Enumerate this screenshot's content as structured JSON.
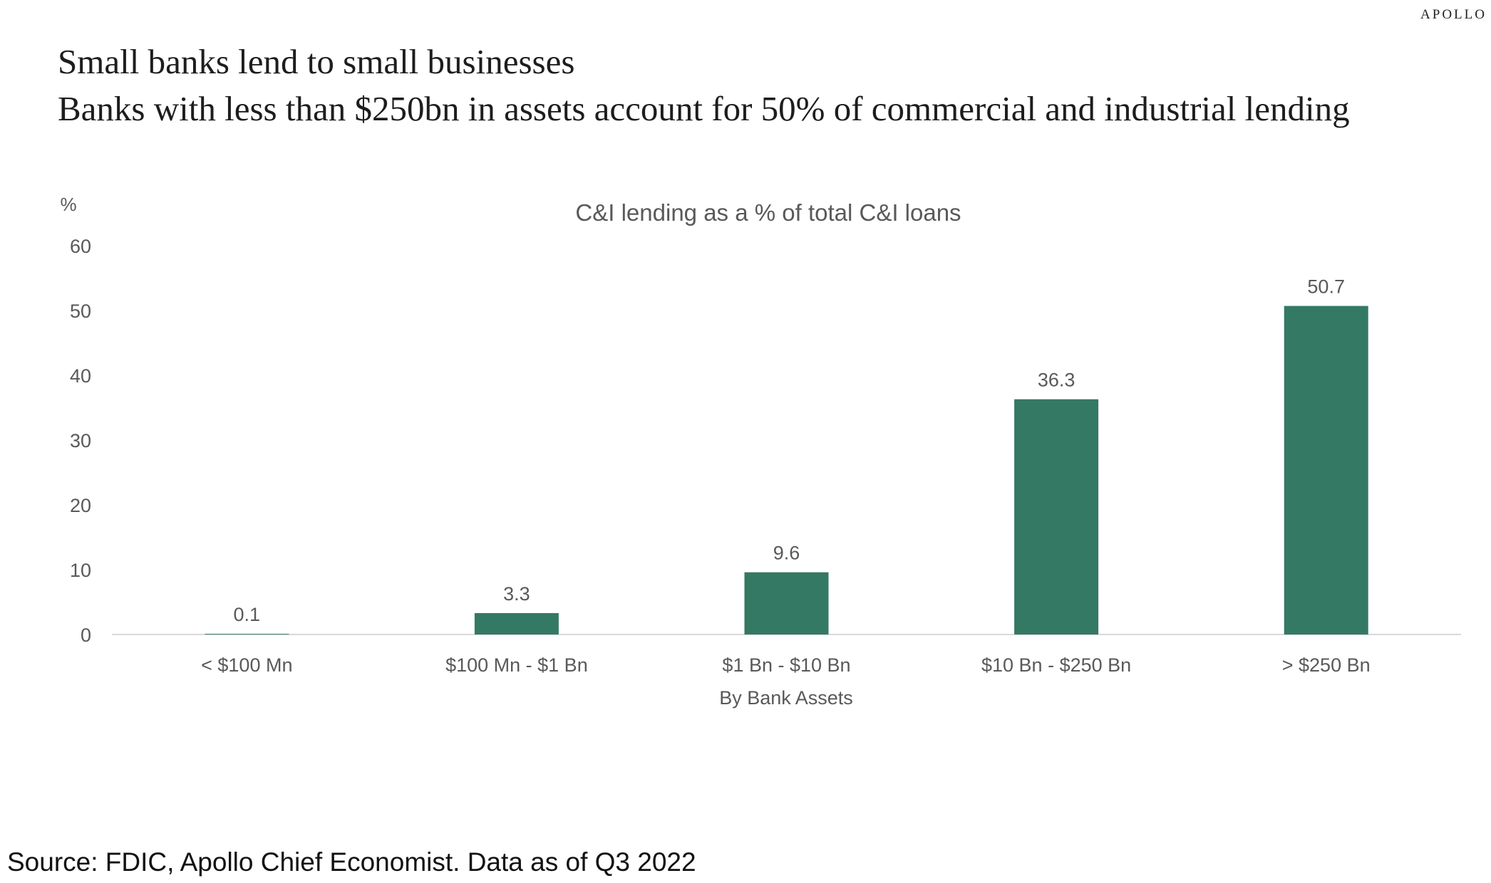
{
  "brand": "APOLLO",
  "title": "Small banks lend to small businesses",
  "subtitle": "Banks with less than $250bn in assets account for 50% of commercial and industrial lending",
  "source": "Source: FDIC, Apollo Chief Economist. Data as of Q3 2022",
  "colors": {
    "bar": "#347963",
    "axis_text": "#595959",
    "axis_line": "#d9d9d9"
  },
  "chart_data": {
    "type": "bar",
    "title": "C&I lending as a % of total C&I loans",
    "ylabel": "%",
    "xlabel": "By Bank Assets",
    "categories": [
      "< $100 Mn",
      "$100 Mn - $1 Bn",
      "$1 Bn - $10 Bn",
      "$10 Bn - $250 Bn",
      "> $250 Bn"
    ],
    "values": [
      0.1,
      3.3,
      9.6,
      36.3,
      50.7
    ],
    "data_labels": [
      "0.1",
      "3.3",
      "9.6",
      "36.3",
      "50.7"
    ],
    "ylim": [
      0,
      60
    ],
    "yticks": [
      "0",
      "10",
      "20",
      "30",
      "40",
      "50",
      "60"
    ],
    "grid": false,
    "legend": "none"
  }
}
